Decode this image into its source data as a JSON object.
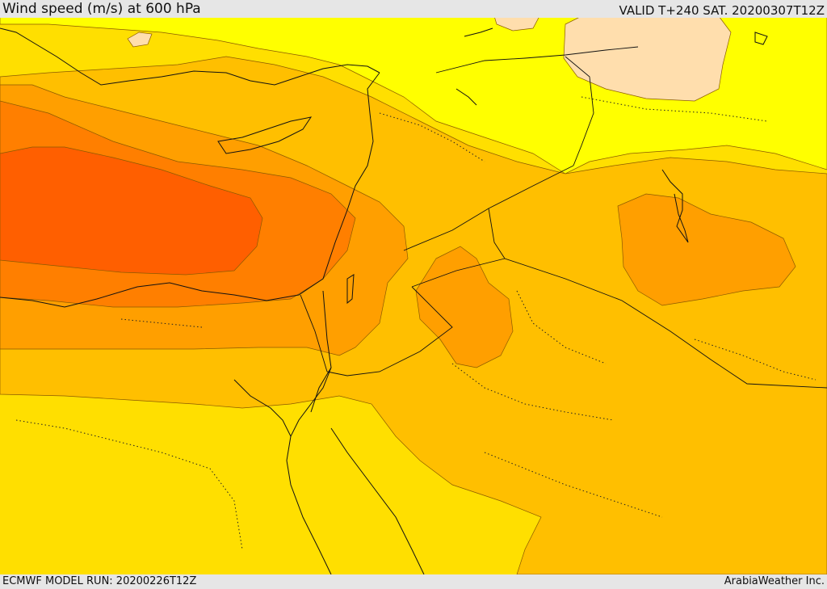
{
  "title": "Wind speed (m/s) at 600 hPa",
  "valid_label": "VALID T+240 SAT. 20200307T12Z",
  "model_run": "ECMWF MODEL RUN: 20200226T12Z",
  "credit": "ArabiaWeather Inc.",
  "colors": {
    "band_lowest": "#ffffff",
    "band_low": "#ffdead",
    "band_1": "#ffff00",
    "band_2": "#ffdf00",
    "band_3": "#ffbf00",
    "band_4": "#ff9f00",
    "band_5": "#ff7f00",
    "band_6": "#ff5f00",
    "coastline": "#111111",
    "border": "#111111",
    "contour_line": "#8a5a00"
  }
}
